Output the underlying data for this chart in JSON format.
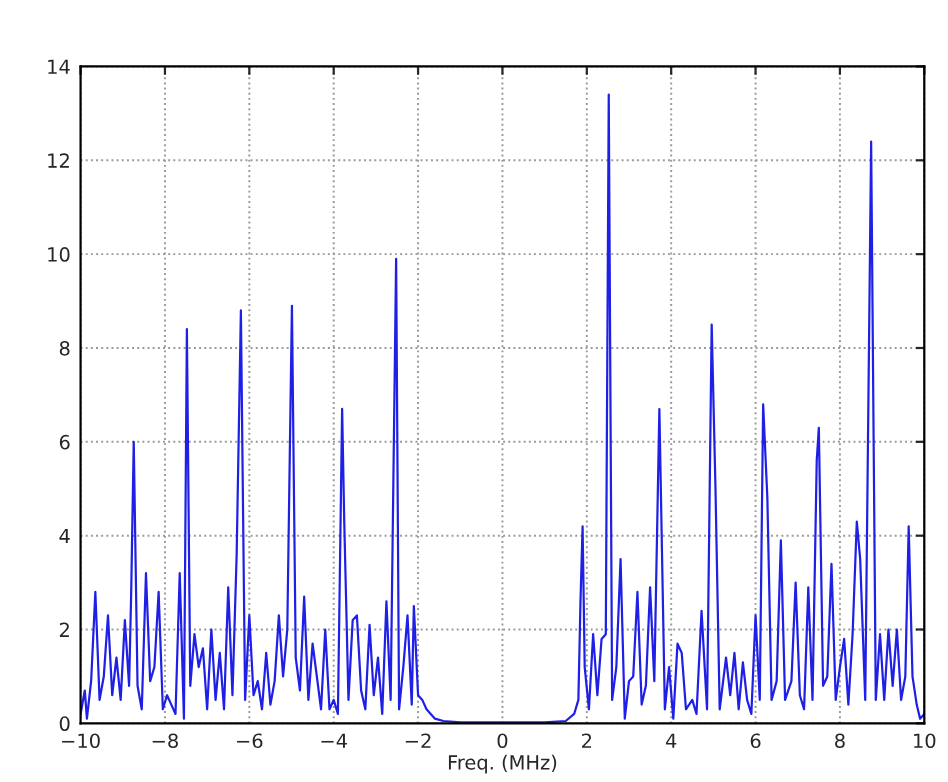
{
  "chart_data": {
    "type": "line",
    "xlabel": "Freq. (MHz)",
    "xlim": [
      -10,
      10
    ],
    "xticks": [
      -10,
      -8,
      -6,
      -4,
      -2,
      0,
      2,
      4,
      6,
      8,
      10
    ],
    "ylim": [
      0,
      14
    ],
    "yticks": [
      0,
      2,
      4,
      6,
      8,
      10,
      12,
      14
    ],
    "grid": true,
    "line_style": "solid",
    "marker": "none",
    "series": [
      {
        "color": "#1f1fe6",
        "x": [
          -10,
          -9.9,
          -9.85,
          -9.75,
          -9.65,
          -9.55,
          -9.45,
          -9.35,
          -9.25,
          -9.15,
          -9.05,
          -8.95,
          -8.85,
          -8.8,
          -8.74,
          -8.65,
          -8.55,
          -8.45,
          -8.35,
          -8.25,
          -8.15,
          -8.05,
          -7.95,
          -7.85,
          -7.75,
          -7.65,
          -7.55,
          -7.48,
          -7.4,
          -7.3,
          -7.2,
          -7.1,
          -7.0,
          -6.9,
          -6.8,
          -6.7,
          -6.6,
          -6.5,
          -6.4,
          -6.3,
          -6.2,
          -6.1,
          -6.0,
          -5.9,
          -5.8,
          -5.7,
          -5.6,
          -5.5,
          -5.4,
          -5.3,
          -5.2,
          -5.1,
          -4.99,
          -4.9,
          -4.8,
          -4.7,
          -4.6,
          -4.5,
          -4.4,
          -4.3,
          -4.2,
          -4.1,
          -4.0,
          -3.9,
          -3.8,
          -3.75,
          -3.65,
          -3.55,
          -3.45,
          -3.35,
          -3.25,
          -3.15,
          -3.05,
          -2.95,
          -2.85,
          -2.75,
          -2.65,
          -2.52,
          -2.45,
          -2.35,
          -2.25,
          -2.15,
          -2.1,
          -2.0,
          -1.9,
          -1.8,
          -1.6,
          -1.4,
          -1.0,
          0,
          1.0,
          1.5,
          1.7,
          1.8,
          1.85,
          1.9,
          1.95,
          2.05,
          2.15,
          2.25,
          2.35,
          2.45,
          2.52,
          2.6,
          2.7,
          2.8,
          2.9,
          3.0,
          3.1,
          3.2,
          3.3,
          3.4,
          3.5,
          3.6,
          3.72,
          3.85,
          3.95,
          4.05,
          4.15,
          4.25,
          4.35,
          4.5,
          4.6,
          4.72,
          4.85,
          4.96,
          5.05,
          5.15,
          5.3,
          5.4,
          5.5,
          5.6,
          5.7,
          5.8,
          5.9,
          6.0,
          6.1,
          6.18,
          6.28,
          6.38,
          6.5,
          6.6,
          6.7,
          6.85,
          6.95,
          7.05,
          7.15,
          7.25,
          7.35,
          7.45,
          7.5,
          7.6,
          7.7,
          7.8,
          7.9,
          8.0,
          8.1,
          8.2,
          8.3,
          8.4,
          8.48,
          8.6,
          8.74,
          8.85,
          8.95,
          9.05,
          9.15,
          9.25,
          9.35,
          9.45,
          9.55,
          9.63,
          9.72,
          9.82,
          9.9,
          10
        ],
        "values": [
          0.2,
          0.7,
          0.1,
          0.9,
          2.8,
          0.5,
          1.0,
          2.3,
          0.6,
          1.4,
          0.5,
          2.2,
          0.8,
          2.8,
          6.0,
          0.8,
          0.3,
          3.2,
          0.9,
          1.2,
          2.8,
          0.3,
          0.6,
          0.4,
          0.2,
          3.2,
          0.1,
          8.4,
          0.8,
          1.9,
          1.2,
          1.6,
          0.3,
          2.0,
          0.5,
          1.5,
          0.3,
          2.9,
          0.6,
          3.6,
          8.8,
          0.5,
          2.3,
          0.6,
          0.9,
          0.3,
          1.5,
          0.4,
          0.9,
          2.3,
          1.0,
          2.0,
          8.9,
          1.4,
          0.7,
          2.7,
          0.5,
          1.7,
          1.0,
          0.3,
          2.0,
          0.3,
          0.5,
          0.2,
          6.7,
          4.3,
          0.5,
          2.2,
          2.3,
          0.7,
          0.3,
          2.1,
          0.6,
          1.4,
          0.2,
          2.6,
          0.5,
          9.9,
          0.3,
          1.2,
          2.3,
          0.4,
          2.5,
          0.6,
          0.5,
          0.3,
          0.1,
          0.05,
          0.02,
          0.02,
          0.02,
          0.05,
          0.2,
          0.5,
          2.6,
          4.2,
          1.2,
          0.3,
          1.9,
          0.6,
          1.8,
          1.9,
          13.4,
          0.5,
          1.2,
          3.5,
          0.1,
          0.9,
          1.0,
          2.8,
          0.4,
          0.8,
          2.9,
          0.9,
          6.7,
          0.3,
          1.2,
          0.1,
          1.7,
          1.5,
          0.3,
          0.5,
          0.2,
          2.4,
          0.3,
          8.5,
          5.0,
          0.3,
          1.4,
          0.6,
          1.5,
          0.3,
          1.3,
          0.5,
          0.2,
          2.3,
          0.5,
          6.8,
          4.8,
          0.5,
          0.9,
          3.9,
          0.5,
          0.9,
          3.0,
          0.6,
          0.3,
          2.9,
          0.5,
          5.6,
          6.3,
          0.8,
          1.0,
          3.4,
          0.5,
          1.2,
          1.8,
          0.4,
          1.9,
          4.3,
          3.5,
          0.5,
          12.4,
          0.5,
          1.9,
          0.5,
          2.0,
          0.8,
          2.0,
          0.5,
          1.0,
          4.2,
          1.0,
          0.4,
          0.1,
          0.2
        ]
      }
    ]
  }
}
